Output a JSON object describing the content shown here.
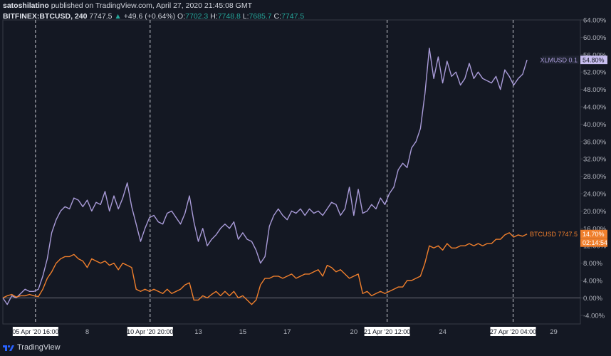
{
  "header": {
    "author": "satoshilatino",
    "published_text": "published on TradingView.com, April 27, 2020 21:45:08 GMT",
    "symbol": "BITFINEX:BTCUSD, 240",
    "last": "7747.5",
    "change_arrow": "▲",
    "change": "+49.6 (+0.64%)",
    "open_label": "O:",
    "open": "7702.3",
    "high_label": "H:",
    "high": "7748.8",
    "low_label": "L:",
    "low": "7685.7",
    "close_label": "C:",
    "close": "7747.5"
  },
  "footer": {
    "logo_text": "TradingView"
  },
  "colors": {
    "background": "#141823",
    "grid_border": "#363a45",
    "xlm": "#a99bd8",
    "btc": "#f07f2c",
    "text": "#b2b5be",
    "zero_line": "#6b6e78"
  },
  "chart_data": {
    "type": "line",
    "y_unit": "%",
    "ylim": [
      -6,
      64
    ],
    "y_ticks": [
      "64.00%",
      "60.00%",
      "56.00%",
      "52.00%",
      "48.00%",
      "44.00%",
      "40.00%",
      "36.00%",
      "32.00%",
      "28.00%",
      "24.00%",
      "20.00%",
      "16.00%",
      "12.00%",
      "8.00%",
      "4.00%",
      "0.00%",
      "-4.00%"
    ],
    "x_ticks": [
      {
        "x": 5.67,
        "label": "05 Apr '20   16:00",
        "boxed": true
      },
      {
        "x": 8,
        "label": "8",
        "boxed": false
      },
      {
        "x": 10.83,
        "label": "10 Apr '20   20:00",
        "boxed": true
      },
      {
        "x": 13,
        "label": "13",
        "boxed": false
      },
      {
        "x": 15,
        "label": "15",
        "boxed": false
      },
      {
        "x": 17,
        "label": "17",
        "boxed": false
      },
      {
        "x": 20,
        "label": "20",
        "boxed": false
      },
      {
        "x": 21.5,
        "label": "21 Apr '20   12:00",
        "boxed": true
      },
      {
        "x": 24,
        "label": "24",
        "boxed": false
      },
      {
        "x": 27.17,
        "label": "27 Apr '20   04:00",
        "boxed": true
      },
      {
        "x": 29,
        "label": "29",
        "boxed": false
      }
    ],
    "xlim": [
      4.2,
      30.2
    ],
    "vlines": [
      5.67,
      10.83,
      21.5,
      27.17
    ],
    "series": [
      {
        "name": "XLMUSD",
        "label": "XLMUSD 0.1",
        "last_value": "54.80%",
        "color": "#a99bd8",
        "x": [
          4.2,
          4.4,
          4.6,
          4.8,
          5.0,
          5.2,
          5.4,
          5.6,
          5.8,
          6.0,
          6.2,
          6.4,
          6.6,
          6.8,
          7.0,
          7.2,
          7.4,
          7.6,
          7.8,
          8.0,
          8.2,
          8.4,
          8.6,
          8.8,
          9.0,
          9.2,
          9.4,
          9.6,
          9.8,
          10.0,
          10.2,
          10.4,
          10.6,
          10.8,
          11.0,
          11.2,
          11.4,
          11.6,
          11.8,
          12.0,
          12.2,
          12.4,
          12.6,
          12.8,
          13.0,
          13.2,
          13.4,
          13.6,
          13.8,
          14.0,
          14.2,
          14.4,
          14.6,
          14.8,
          15.0,
          15.2,
          15.4,
          15.6,
          15.8,
          16.0,
          16.2,
          16.4,
          16.6,
          16.8,
          17.0,
          17.2,
          17.4,
          17.6,
          17.8,
          18.0,
          18.2,
          18.4,
          18.6,
          18.8,
          19.0,
          19.2,
          19.4,
          19.6,
          19.8,
          20.0,
          20.2,
          20.4,
          20.6,
          20.8,
          21.0,
          21.2,
          21.4,
          21.6,
          21.8,
          22.0,
          22.2,
          22.4,
          22.6,
          22.8,
          23.0,
          23.2,
          23.4,
          23.6,
          23.8,
          24.0,
          24.2,
          24.4,
          24.6,
          24.8,
          25.0,
          25.2,
          25.4,
          25.6,
          25.8,
          26.0,
          26.2,
          26.4,
          26.6,
          26.8,
          27.0,
          27.2,
          27.4,
          27.6,
          27.8
        ],
        "values": [
          0.0,
          -1.5,
          0.5,
          0.0,
          1.0,
          2.0,
          1.5,
          1.5,
          2.0,
          5.0,
          9.0,
          15.0,
          18.0,
          20.0,
          21.0,
          20.5,
          23.0,
          22.5,
          21.0,
          22.5,
          20.0,
          22.0,
          21.5,
          24.5,
          20.0,
          23.5,
          20.5,
          23.0,
          26.5,
          21.0,
          17.0,
          13.0,
          16.0,
          18.5,
          19.0,
          17.5,
          17.0,
          19.5,
          20.0,
          18.5,
          17.0,
          19.5,
          23.5,
          17.5,
          13.0,
          16.0,
          12.0,
          13.5,
          14.5,
          16.0,
          17.0,
          16.0,
          17.5,
          13.5,
          15.0,
          13.5,
          13.0,
          11.0,
          8.0,
          9.5,
          16.5,
          19.0,
          20.5,
          19.0,
          18.0,
          20.0,
          19.5,
          20.5,
          19.0,
          20.5,
          19.5,
          20.0,
          19.0,
          20.5,
          22.0,
          21.5,
          19.0,
          20.5,
          25.5,
          19.0,
          25.0,
          19.5,
          20.0,
          21.5,
          20.5,
          23.0,
          21.5,
          24.0,
          25.5,
          29.5,
          31.0,
          30.0,
          34.5,
          36.0,
          39.0,
          47.0,
          57.5,
          50.5,
          55.5,
          49.5,
          54.5,
          51.0,
          52.0,
          49.0,
          50.5,
          54.0,
          50.5,
          52.0,
          50.5,
          50.0,
          49.5,
          51.0,
          48.0,
          52.5,
          51.0,
          49.0,
          50.5,
          51.5,
          54.8
        ],
        "label_y": 54.8
      },
      {
        "name": "BTCUSD",
        "label": "BTCUSD 7747.5",
        "last_value": "14.70%",
        "countdown": "02:14:54",
        "color": "#f07f2c",
        "x": [
          4.2,
          4.4,
          4.6,
          4.8,
          5.0,
          5.2,
          5.4,
          5.6,
          5.8,
          6.0,
          6.2,
          6.4,
          6.6,
          6.8,
          7.0,
          7.2,
          7.4,
          7.6,
          7.8,
          8.0,
          8.2,
          8.4,
          8.6,
          8.8,
          9.0,
          9.2,
          9.4,
          9.6,
          9.8,
          10.0,
          10.2,
          10.4,
          10.6,
          10.8,
          11.0,
          11.2,
          11.4,
          11.6,
          11.8,
          12.0,
          12.2,
          12.4,
          12.6,
          12.8,
          13.0,
          13.2,
          13.4,
          13.6,
          13.8,
          14.0,
          14.2,
          14.4,
          14.6,
          14.8,
          15.0,
          15.2,
          15.4,
          15.6,
          15.8,
          16.0,
          16.2,
          16.4,
          16.6,
          16.8,
          17.0,
          17.2,
          17.4,
          17.6,
          17.8,
          18.0,
          18.2,
          18.4,
          18.6,
          18.8,
          19.0,
          19.2,
          19.4,
          19.6,
          19.8,
          20.0,
          20.2,
          20.4,
          20.6,
          20.8,
          21.0,
          21.2,
          21.4,
          21.6,
          21.8,
          22.0,
          22.2,
          22.4,
          22.6,
          22.8,
          23.0,
          23.2,
          23.4,
          23.6,
          23.8,
          24.0,
          24.2,
          24.4,
          24.6,
          24.8,
          25.0,
          25.2,
          25.4,
          25.6,
          25.8,
          26.0,
          26.2,
          26.4,
          26.6,
          26.8,
          27.0,
          27.2,
          27.4,
          27.6,
          27.8
        ],
        "values": [
          0.0,
          0.5,
          0.8,
          0.2,
          0.5,
          0.5,
          0.8,
          0.5,
          0.3,
          2.0,
          4.5,
          6.0,
          8.0,
          9.0,
          9.5,
          9.5,
          10.0,
          9.0,
          8.5,
          7.0,
          9.0,
          8.5,
          8.0,
          8.5,
          7.5,
          8.0,
          6.5,
          8.0,
          7.5,
          7.0,
          2.0,
          1.5,
          2.0,
          1.5,
          2.0,
          1.5,
          1.0,
          2.0,
          1.0,
          1.5,
          2.0,
          3.0,
          3.5,
          -0.5,
          -0.5,
          0.5,
          0.0,
          0.8,
          1.5,
          0.5,
          1.5,
          0.5,
          1.5,
          0.0,
          0.5,
          -0.5,
          -1.5,
          -0.5,
          3.0,
          4.5,
          4.5,
          5.0,
          5.0,
          4.5,
          5.0,
          5.5,
          4.5,
          5.0,
          5.5,
          5.5,
          6.0,
          6.5,
          5.0,
          7.5,
          7.0,
          6.0,
          6.5,
          5.5,
          4.5,
          5.0,
          5.5,
          1.0,
          1.5,
          0.5,
          1.0,
          1.5,
          1.0,
          1.5,
          2.0,
          2.5,
          2.5,
          4.0,
          4.0,
          4.5,
          5.0,
          8.0,
          12.0,
          11.5,
          12.0,
          11.0,
          12.5,
          11.5,
          11.5,
          12.0,
          12.0,
          12.5,
          12.0,
          12.5,
          12.0,
          12.5,
          12.5,
          13.5,
          13.5,
          14.5,
          15.0,
          14.0,
          14.5,
          14.2,
          14.7
        ],
        "label_y": 14.7
      }
    ]
  }
}
